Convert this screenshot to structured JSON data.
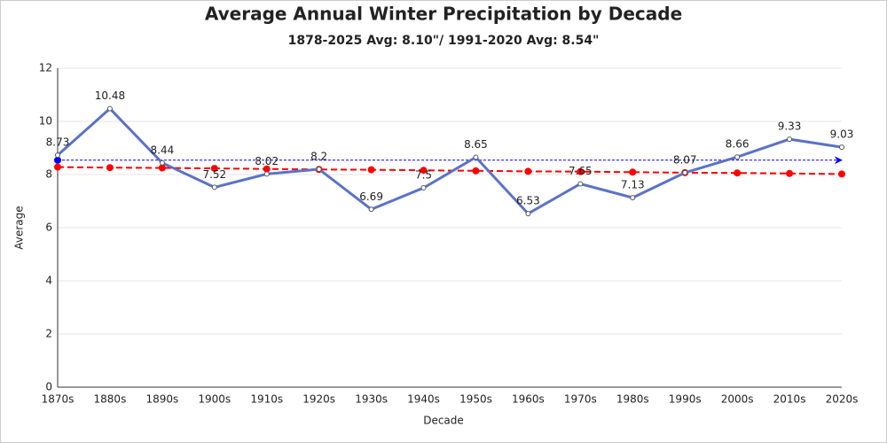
{
  "chart_data": {
    "type": "line",
    "title": "Average Annual Winter Precipitation by Decade",
    "subtitle": "1878-2025 Avg: 8.10\"/ 1991-2020 Avg: 8.54\"",
    "x_label": "Decade",
    "y_label": "Average",
    "categories": [
      "1870s",
      "1880s",
      "1890s",
      "1900s",
      "1910s",
      "1920s",
      "1930s",
      "1940s",
      "1950s",
      "1960s",
      "1970s",
      "1980s",
      "1990s",
      "2000s",
      "2010s",
      "2020s"
    ],
    "series": [
      {
        "color": "#5b72c9",
        "values": [
          8.73,
          10.48,
          8.44,
          7.52,
          8.02,
          8.2,
          6.69,
          7.5,
          8.65,
          6.53,
          7.65,
          7.13,
          8.07,
          8.66,
          9.33,
          9.03
        ],
        "data_labels": true
      },
      {
        "color": "#ff0000",
        "dashed": true,
        "values": [
          8.28,
          8.26,
          8.25,
          8.23,
          8.21,
          8.19,
          8.18,
          8.16,
          8.14,
          8.12,
          8.11,
          8.09,
          8.07,
          8.06,
          8.04,
          8.02
        ]
      }
    ],
    "reference_line": {
      "value": 8.54,
      "color": "#0000ff"
    },
    "ylim": [
      0,
      12
    ],
    "yticks": [
      0,
      2,
      4,
      6,
      8,
      10,
      12
    ],
    "grid": true
  }
}
